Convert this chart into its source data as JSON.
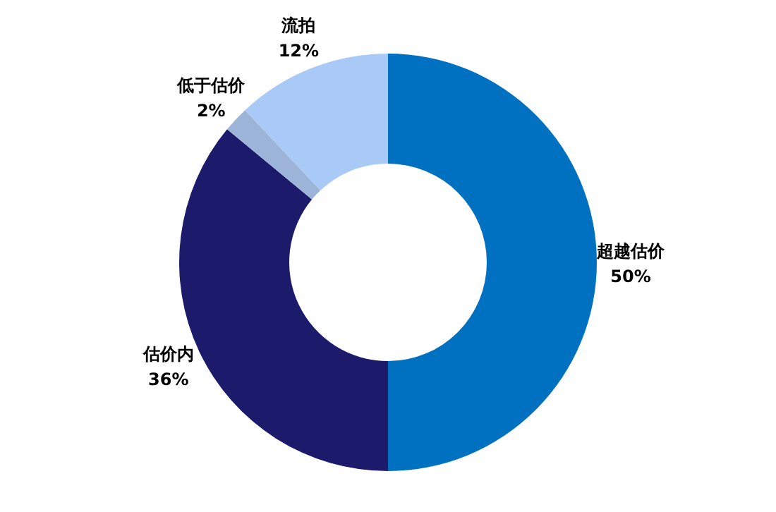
{
  "chart_data": {
    "type": "donut",
    "categories": [
      "超越估价",
      "估价内",
      "低于估价",
      "流拍"
    ],
    "values": [
      50,
      36,
      2,
      12
    ],
    "value_labels": [
      "50%",
      "36%",
      "2%",
      "12%"
    ],
    "colors": [
      "#0070c0",
      "#1b1a6b",
      "#9bb4d8",
      "#a9c9f7"
    ]
  }
}
